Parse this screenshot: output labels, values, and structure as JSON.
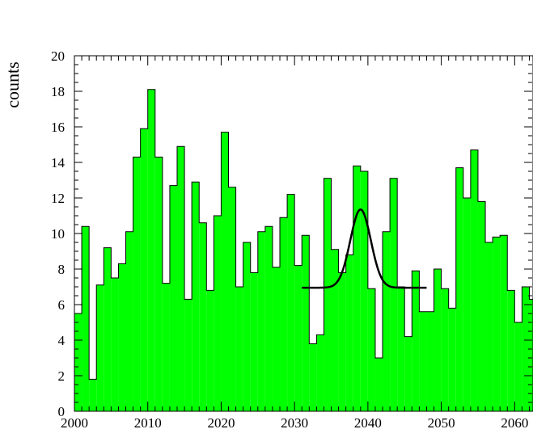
{
  "chart_data": {
    "type": "bar",
    "histogram": true,
    "xlabel": "",
    "ylabel": "counts",
    "xlim": [
      2000,
      2062.5
    ],
    "ylim": [
      0,
      20
    ],
    "x_ticks": [
      2000,
      2010,
      2020,
      2030,
      2040,
      2050,
      2060
    ],
    "y_ticks": [
      0,
      2,
      4,
      6,
      8,
      10,
      12,
      14,
      16,
      18,
      20
    ],
    "bin_width": 1,
    "bin_start": 2000,
    "values": [
      5.5,
      10.4,
      1.8,
      7.1,
      9.2,
      7.5,
      8.3,
      10.1,
      14.3,
      15.9,
      18.1,
      14.3,
      7.2,
      12.7,
      14.9,
      6.3,
      12.9,
      10.6,
      6.8,
      11.0,
      15.7,
      12.6,
      7.0,
      9.5,
      7.8,
      10.1,
      10.4,
      8.1,
      10.9,
      12.2,
      8.2,
      9.9,
      3.8,
      4.3,
      13.1,
      9.1,
      7.8,
      8.8,
      13.8,
      13.5,
      6.9,
      3.0,
      10.1,
      13.1,
      7.0,
      4.2,
      7.9,
      5.6,
      5.6,
      8.0,
      6.9,
      5.8,
      13.7,
      12.0,
      14.7,
      11.8,
      9.5,
      9.8,
      9.9,
      6.8,
      5.0,
      7.0,
      6.3
    ],
    "fit": {
      "type": "gaussian",
      "baseline": 6.95,
      "amplitude": 4.4,
      "mean": 2039.0,
      "sigma": 1.4,
      "x_range": [
        2031,
        2048
      ]
    },
    "grid": false,
    "colors": {
      "bar_fill": "#00ff00",
      "bar_edge": "#000000",
      "fit_line": "#000000",
      "axis": "#000000"
    }
  }
}
